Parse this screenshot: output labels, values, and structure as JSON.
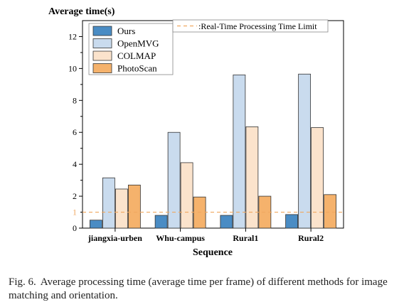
{
  "chart_data": {
    "type": "bar",
    "ylabel": "Average time(s)",
    "xlabel": "Sequence",
    "categories": [
      "jiangxia-urben",
      "Whu-campus",
      "Rural1",
      "Rural2"
    ],
    "ylim": [
      0,
      13
    ],
    "yticks": [
      0,
      2,
      4,
      6,
      8,
      10,
      12
    ],
    "series": [
      {
        "name": "Ours",
        "values": [
          0.5,
          0.8,
          0.8,
          0.85
        ],
        "color": "#4a8cc4"
      },
      {
        "name": "OpenMVG",
        "values": [
          3.15,
          6.0,
          9.6,
          9.65
        ],
        "color": "#c9dbee"
      },
      {
        "name": "COLMAP",
        "values": [
          2.45,
          4.1,
          6.35,
          6.3
        ],
        "color": "#fbe3cc"
      },
      {
        "name": "PhotoScan",
        "values": [
          2.7,
          1.95,
          2.0,
          2.1
        ],
        "color": "#f5b26c"
      }
    ],
    "reference_line": {
      "value": 1,
      "label": "1",
      "legend": ":Real-Time Processing Time Limit",
      "color": "#f0a860",
      "style": "dashed"
    },
    "legend_position": "top-left",
    "grid": false
  },
  "caption": {
    "label": "Fig. 6.",
    "text": "Average processing time (average time per frame) of different methods for image matching and orientation."
  }
}
